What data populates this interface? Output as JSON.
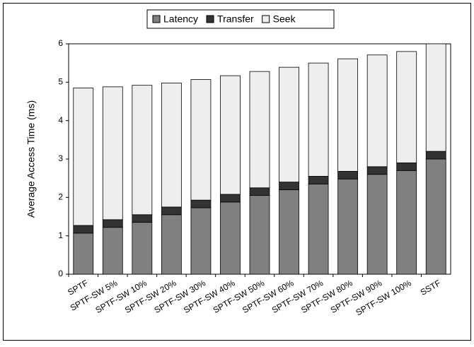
{
  "chart_data": {
    "type": "stacked_bar",
    "y_label": "Average Access Time (ms)",
    "categories": [
      "SPTF",
      "SPTF-SW 5%",
      "SPTF-SW 10%",
      "SPTF-SW 20%",
      "SPTF-SW 30%",
      "SPTF-SW 40%",
      "SPTF-SW 50%",
      "SPTF-SW 60%",
      "SPTF-SW 70%",
      "SPTF-SW 80%",
      "SPTF-SW 90%",
      "SPTF-SW 100%",
      "SSTF"
    ],
    "series": [
      {
        "name": "Latency",
        "color": "#808080",
        "values": [
          1.07,
          1.22,
          1.35,
          1.55,
          1.73,
          1.88,
          2.05,
          2.2,
          2.35,
          2.48,
          2.6,
          2.7,
          3.0
        ]
      },
      {
        "name": "Transfer",
        "color": "#333333",
        "values": [
          0.2,
          0.2,
          0.2,
          0.2,
          0.2,
          0.2,
          0.2,
          0.2,
          0.2,
          0.2,
          0.2,
          0.2,
          0.2
        ]
      },
      {
        "name": "Seek",
        "color": "#eeeeee",
        "values": [
          3.58,
          3.46,
          3.37,
          3.23,
          3.14,
          3.09,
          3.03,
          2.99,
          2.95,
          2.93,
          2.91,
          2.9,
          2.8
        ]
      }
    ],
    "ylim": [
      0,
      6
    ],
    "yticks": [
      0,
      1,
      2,
      3,
      4,
      5,
      6
    ],
    "grid": false,
    "legend": "top"
  }
}
